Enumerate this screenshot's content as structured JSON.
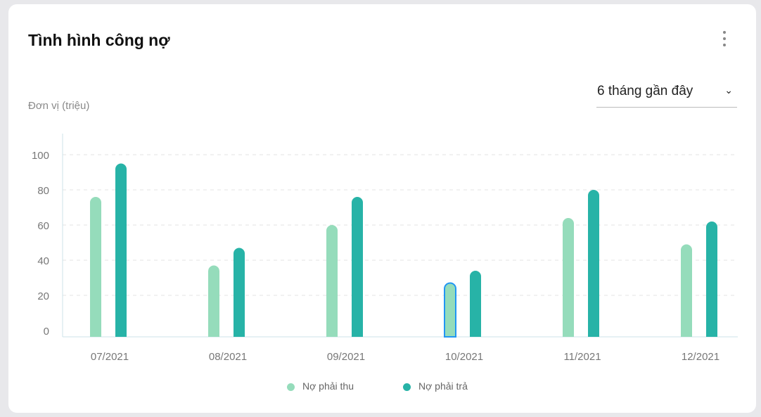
{
  "header": {
    "title": "Tình hình công nợ",
    "unit_label": "Đơn vị (triệu)",
    "menu_icon": "kebab-icon"
  },
  "filter": {
    "selected": "6 tháng gần đây",
    "chevron": "⌄"
  },
  "colors": {
    "receivable": "#95dcbb",
    "payable": "#27b3a7",
    "highlight": "#2196f3"
  },
  "chart_data": {
    "type": "bar",
    "categories": [
      "07/2021",
      "08/2021",
      "09/2021",
      "10/2021",
      "11/2021",
      "12/2021"
    ],
    "series": [
      {
        "name": "Nợ phải thu",
        "values": [
          76,
          37,
          60,
          27,
          64,
          49
        ]
      },
      {
        "name": "Nợ phải trả",
        "values": [
          95,
          47,
          76,
          34,
          80,
          62
        ]
      }
    ],
    "ylabel": "Đơn vị (triệu)",
    "ylim": [
      0,
      100
    ],
    "yticks": [
      "0",
      "20",
      "40",
      "60",
      "80",
      "100"
    ],
    "grid": true,
    "legend": "bottom-center",
    "highlighted": {
      "series": 0,
      "category": "10/2021"
    }
  }
}
